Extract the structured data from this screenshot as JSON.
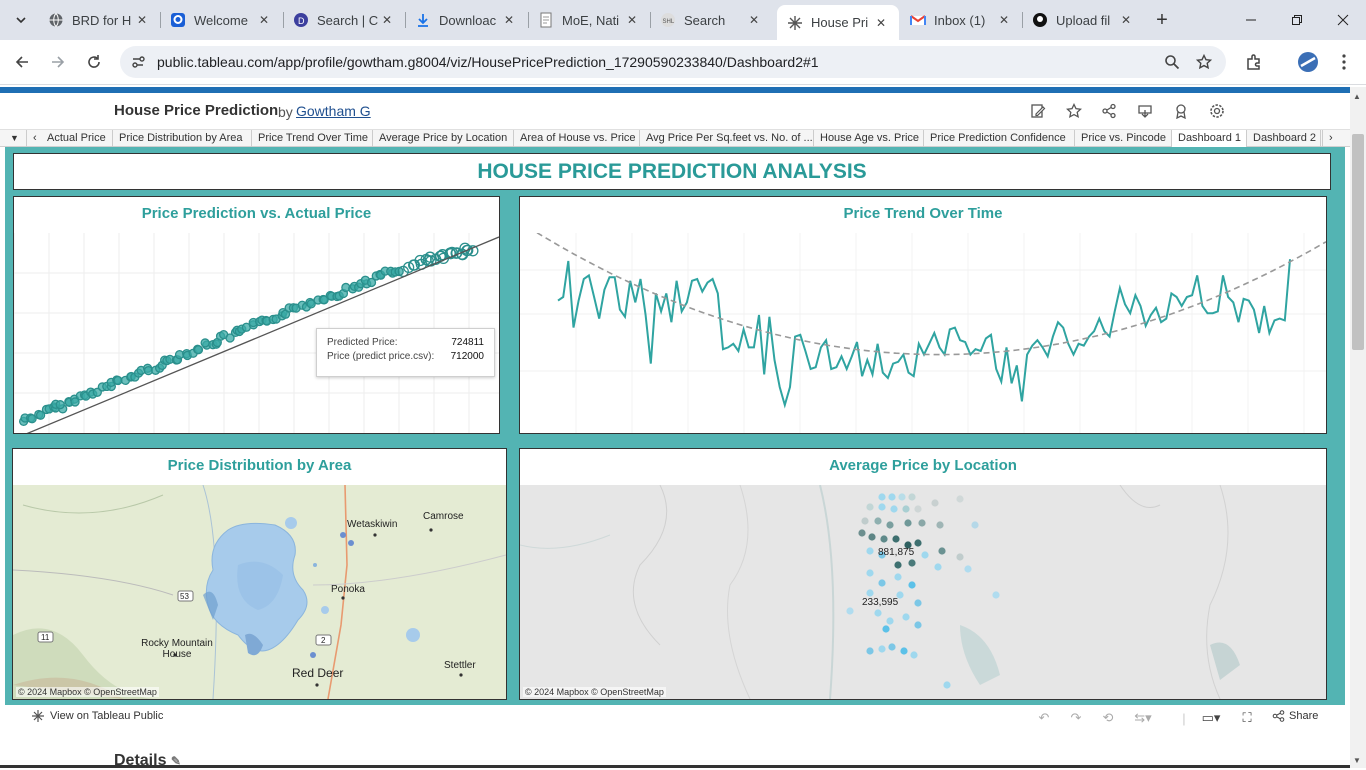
{
  "browser": {
    "tabs": [
      {
        "title": "BRD for H",
        "icon": "globe-icon"
      },
      {
        "title": "Welcome",
        "icon": "q-logo-icon"
      },
      {
        "title": "Search | C",
        "icon": "d-logo-icon"
      },
      {
        "title": "Downloac",
        "icon": "download-icon"
      },
      {
        "title": "MoE, Nati",
        "icon": "document-icon"
      },
      {
        "title": "Search",
        "icon": "shl-icon"
      },
      {
        "title": "House Pri",
        "icon": "tableau-icon",
        "active": true
      },
      {
        "title": "Inbox (1)",
        "icon": "gmail-icon"
      },
      {
        "title": "Upload fil",
        "icon": "github-icon"
      }
    ],
    "url": "public.tableau.com/app/profile/gowtham.g8004/viz/HousePricePrediction_17290590233840/Dashboard2#1"
  },
  "viz": {
    "title": "House Price Prediction",
    "by": "by",
    "author": "Gowtham G",
    "sheet_tabs": [
      "Actual Price",
      "Price Distribution by Area",
      "Price Trend Over Time",
      "Average Price by Location",
      "Area of House vs. Price",
      "Avg Price Per Sq.feet vs. No. of ...",
      "House Age vs. Price",
      "Price Prediction Confidence",
      "Price vs. Pincode",
      "Dashboard 1",
      "Dashboard 2"
    ],
    "active_sheet": "Dashboard 1"
  },
  "dashboard": {
    "title": "HOUSE PRICE PREDICTION ANALYSIS",
    "panels": {
      "scatter_title": "Price Prediction vs. Actual Price",
      "trend_title": "Price Trend Over Time",
      "area_title": "Price Distribution by Area",
      "location_title": "Average Price by Location"
    },
    "tooltip": {
      "label1": "Predicted Price:",
      "value1": "724811",
      "label2": "Price (predict price.csv):",
      "value2": "712000"
    },
    "map_area": {
      "labels": [
        "Wetaskiwin",
        "Camrose",
        "Ponoka",
        "Rocky Mountain House",
        "Red Deer",
        "Stettler"
      ],
      "road_shields": [
        "53",
        "11",
        "2"
      ],
      "credit": "© 2024 Mapbox  © OpenStreetMap"
    },
    "map_location": {
      "labels": [
        "881,875",
        "233,595"
      ],
      "credit": "© 2024 Mapbox  © OpenStreetMap"
    }
  },
  "chart_data": [
    {
      "type": "scatter",
      "title": "Price Prediction vs. Actual Price",
      "series": [
        {
          "x": [
            0.02,
            0.05,
            0.08,
            0.1,
            0.13,
            0.16,
            0.19,
            0.22,
            0.25,
            0.28,
            0.31,
            0.34,
            0.37,
            0.4,
            0.43,
            0.46,
            0.49,
            0.52,
            0.55,
            0.58,
            0.61,
            0.64,
            0.67,
            0.7,
            0.73,
            0.76,
            0.79,
            0.82,
            0.85,
            0.87,
            0.89,
            0.91,
            0.93,
            0.95
          ],
          "y": [
            0.06,
            0.09,
            0.12,
            0.14,
            0.17,
            0.2,
            0.23,
            0.26,
            0.29,
            0.32,
            0.35,
            0.38,
            0.41,
            0.44,
            0.47,
            0.5,
            0.53,
            0.56,
            0.59,
            0.62,
            0.65,
            0.68,
            0.7,
            0.73,
            0.76,
            0.79,
            0.81,
            0.83,
            0.86,
            0.87,
            0.88,
            0.9,
            0.91,
            0.93
          ]
        }
      ]
    },
    {
      "type": "line",
      "title": "Price Trend Over Time",
      "values": [
        0.68,
        0.7,
        0.9,
        0.53,
        0.68,
        0.8,
        0.82,
        0.7,
        0.58,
        0.74,
        0.81,
        0.81,
        0.63,
        0.59,
        0.79,
        0.67,
        0.8,
        0.6,
        0.33,
        0.72,
        0.62,
        0.72,
        0.56,
        0.79,
        0.62,
        0.67,
        0.79,
        0.8,
        0.73,
        0.78,
        0.8,
        0.72,
        0.41,
        0.42,
        0.44,
        0.4,
        0.52,
        0.42,
        0.42,
        0.6,
        0.27,
        0.59,
        0.35,
        0.2,
        0.1,
        0.2,
        0.48,
        0.49,
        0.4,
        0.3,
        0.31,
        0.42,
        0.46,
        0.3,
        0.31,
        0.37,
        0.3,
        0.37,
        0.45,
        0.26,
        0.35,
        0.27,
        0.44,
        0.28,
        0.25,
        0.33,
        0.34,
        0.38,
        0.28,
        0.26,
        0.44,
        0.38,
        0.44,
        0.5,
        0.42,
        0.38,
        0.52,
        0.53,
        0.46,
        0.45,
        0.38,
        0.41,
        0.4,
        0.47,
        0.49,
        0.3,
        0.23,
        0.42,
        0.22,
        0.32,
        0.12,
        0.38,
        0.43,
        0.46,
        0.42,
        0.37,
        0.48,
        0.56,
        0.53,
        0.44,
        0.38,
        0.44,
        0.43,
        0.48,
        0.51,
        0.58,
        0.51,
        0.48,
        0.62,
        0.75,
        0.66,
        0.61,
        0.71,
        0.65,
        0.54,
        0.6,
        0.64,
        0.56,
        0.58,
        0.72,
        0.7,
        0.65,
        0.7,
        0.71,
        0.82,
        0.65,
        0.61,
        0.61,
        0.62,
        0.82,
        0.7,
        0.67,
        0.56,
        0.69,
        0.68,
        0.63,
        0.5,
        0.65,
        0.5,
        0.57,
        0.58,
        0.57,
        0.91
      ],
      "trend": "quadratic"
    }
  ],
  "footer": {
    "view_public": "View on Tableau Public",
    "share": "Share",
    "details": "Details"
  },
  "colors": {
    "teal": "#2e9f9c",
    "dashboard_bg": "#53b4b3",
    "accent_blue": "#1f6fb4"
  }
}
